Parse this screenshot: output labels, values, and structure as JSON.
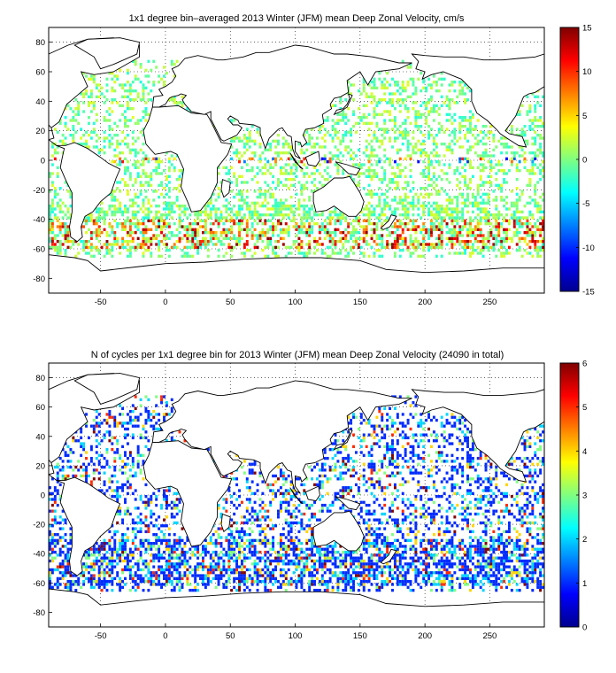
{
  "panels": [
    {
      "title": "1x1 degree bin–averaged 2013 Winter (JFM) mean Deep Zonal Velocity, cm/s",
      "xticks": [
        -50,
        0,
        50,
        100,
        150,
        200,
        250
      ],
      "yticks": [
        80,
        60,
        40,
        20,
        0,
        -20,
        -40,
        -60,
        -80
      ],
      "colorbar": {
        "min": -15,
        "max": 15,
        "ticks": [
          15,
          10,
          5,
          0,
          -5,
          -10,
          -15
        ],
        "colormap": "jet"
      }
    },
    {
      "title": "N of cycles per 1x1 degree bin for 2013 Winter (JFM) mean Deep Zonal Velocity (24090 in total)",
      "xticks": [
        -50,
        0,
        50,
        100,
        150,
        200,
        250
      ],
      "yticks": [
        80,
        60,
        40,
        20,
        0,
        -20,
        -40,
        -60,
        -80
      ],
      "colorbar": {
        "min": 0,
        "max": 6,
        "ticks": [
          6,
          5,
          4,
          3,
          2,
          1,
          0
        ],
        "colormap": "jet"
      }
    }
  ],
  "chart_data": [
    {
      "type": "heatmap",
      "title": "1x1 degree bin–averaged 2013 Winter (JFM) mean Deep Zonal Velocity, cm/s",
      "xlim": [
        -90,
        292
      ],
      "ylim": [
        -90,
        90
      ],
      "value_range": [
        -15,
        15
      ],
      "colormap": "jet",
      "grid": true
    },
    {
      "type": "heatmap",
      "title": "N of cycles per 1x1 degree bin for 2013 Winter (JFM) mean Deep Zonal Velocity (24090 in total)",
      "xlim": [
        -90,
        292
      ],
      "ylim": [
        -90,
        90
      ],
      "value_range": [
        0,
        6
      ],
      "colormap": "jet",
      "grid": true
    }
  ]
}
